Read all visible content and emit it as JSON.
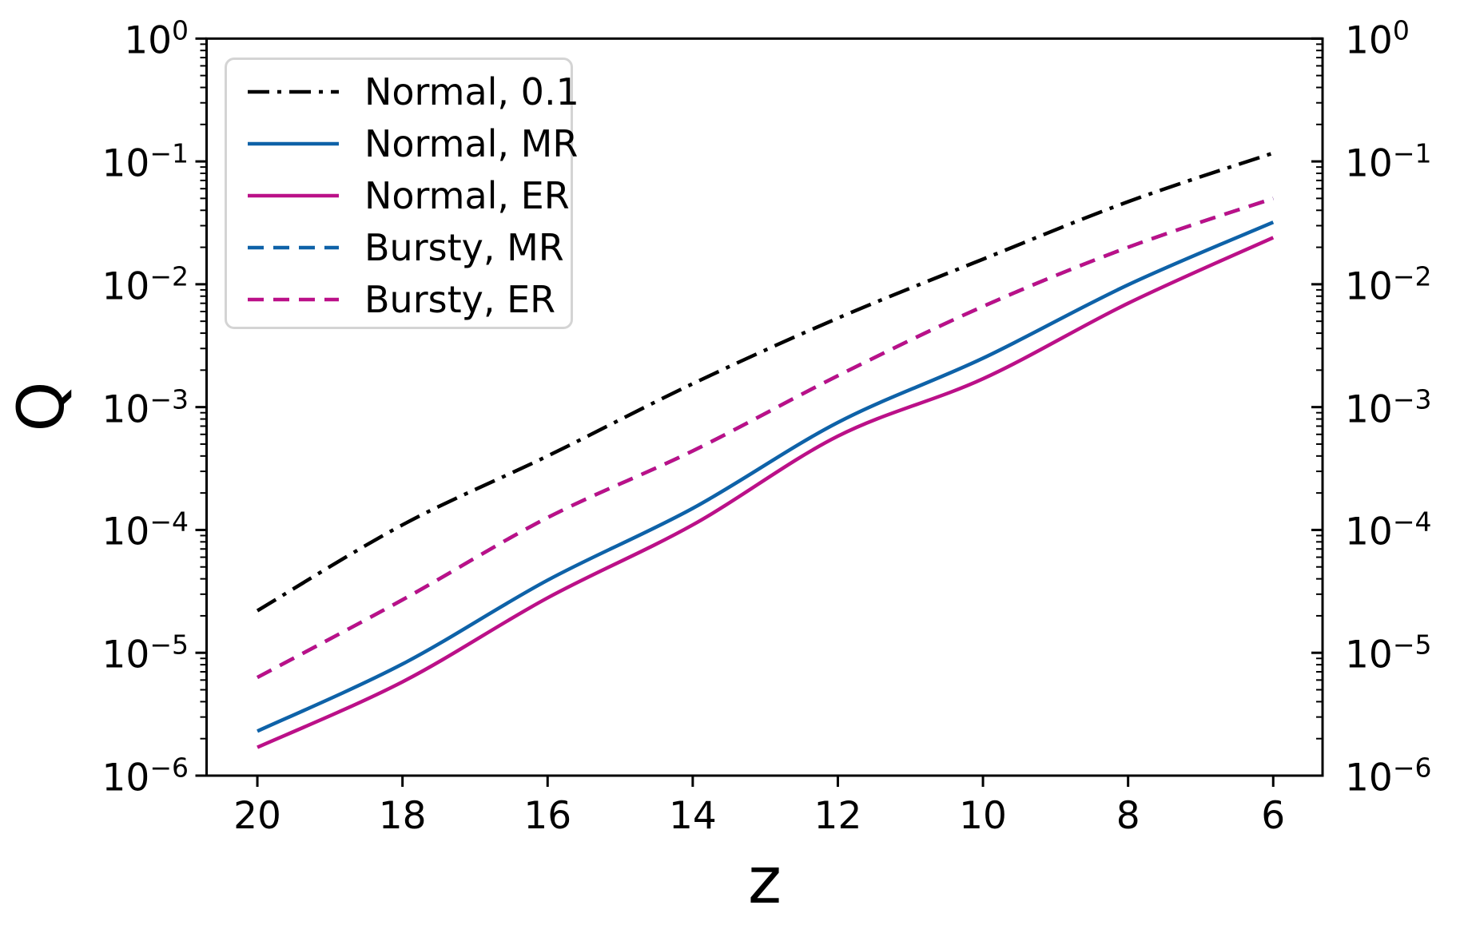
{
  "chart_data": {
    "type": "line",
    "title": "",
    "xlabel": "z",
    "ylabel": "Q",
    "x_axis": {
      "inverted": true,
      "min": 5.32,
      "max": 20.7,
      "ticks": [
        20,
        18,
        16,
        14,
        12,
        10,
        8,
        6
      ],
      "tick_labels": [
        "20",
        "18",
        "16",
        "14",
        "12",
        "10",
        "8",
        "6"
      ]
    },
    "y_axis": {
      "scale": "log",
      "min": 1e-06,
      "max": 1,
      "tick_exponents": [
        0,
        -1,
        -2,
        -3,
        -4,
        -5,
        -6
      ],
      "minor_ticks": true,
      "labels_on_right": true
    },
    "grid": false,
    "legend_position": "upper left",
    "x": [
      20,
      18,
      16,
      14,
      12,
      10,
      8,
      6
    ],
    "series": [
      {
        "name": "Normal, 0.1",
        "color": "#000000",
        "style": "dashdot",
        "values": [
          2.2e-05,
          0.00011,
          0.0004,
          0.00155,
          0.0053,
          0.016,
          0.047,
          0.117
        ]
      },
      {
        "name": "Normal, MR",
        "color": "#0e62a8",
        "style": "solid",
        "values": [
          2.3e-06,
          8.1e-06,
          3.9e-05,
          0.00015,
          0.00075,
          0.0025,
          0.0099,
          0.032
        ]
      },
      {
        "name": "Normal, ER",
        "color": "#bb1088",
        "style": "solid",
        "values": [
          1.7e-06,
          5.8e-06,
          2.8e-05,
          0.00011,
          0.00058,
          0.0017,
          0.007,
          0.024
        ]
      },
      {
        "name": "Bursty, MR",
        "color": "#0e62a8",
        "style": "dashed",
        "values": [
          6.3e-06,
          2.7e-05,
          0.000126,
          0.00044,
          0.0018,
          0.0066,
          0.02,
          0.05
        ]
      },
      {
        "name": "Bursty, ER",
        "color": "#bb1088",
        "style": "dashed",
        "values": [
          6.3e-06,
          2.7e-05,
          0.000126,
          0.00044,
          0.0018,
          0.0066,
          0.02,
          0.05
        ]
      }
    ]
  }
}
